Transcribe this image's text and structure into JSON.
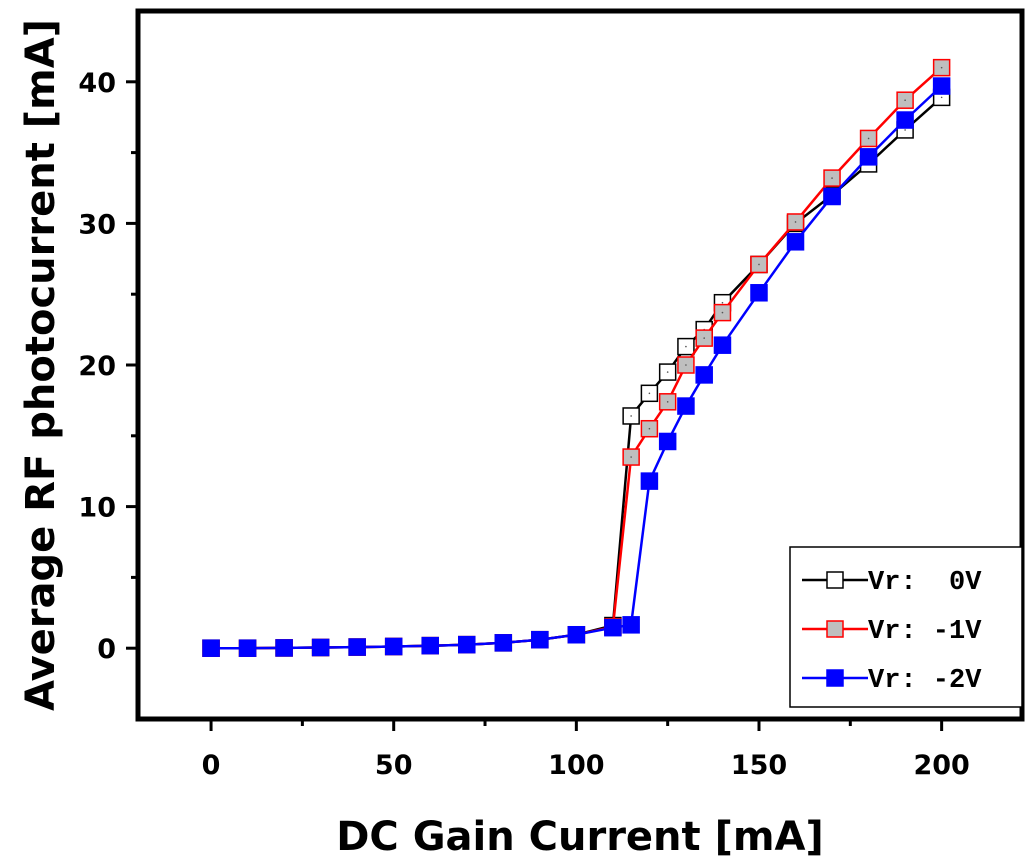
{
  "chart_data": {
    "type": "line",
    "xlabel": "DC Gain Current [mA]",
    "ylabel": "Average RF photocurrent [mA]",
    "xlim": [
      -20,
      222
    ],
    "ylim": [
      -5,
      45
    ],
    "xticks": [
      0,
      50,
      100,
      150,
      200
    ],
    "yticks": [
      0,
      10,
      20,
      30,
      40
    ],
    "grid": false,
    "legend_position": "bottom-right",
    "series": [
      {
        "name": "Vr:  0V",
        "color": "#000000",
        "marker_fill": "#ffffff",
        "x": [
          0,
          10,
          20,
          30,
          40,
          50,
          60,
          70,
          80,
          90,
          100,
          110,
          115,
          120,
          125,
          130,
          135,
          140,
          150,
          160,
          170,
          180,
          190,
          200
        ],
        "y": [
          0,
          0,
          0.02,
          0.05,
          0.08,
          0.12,
          0.18,
          0.25,
          0.38,
          0.6,
          0.95,
          1.6,
          16.4,
          18.0,
          19.5,
          21.3,
          22.5,
          24.4,
          27.1,
          30.0,
          32.0,
          34.2,
          36.6,
          38.9
        ]
      },
      {
        "name": "Vr: -1V",
        "color": "#ff0000",
        "marker_fill": "#bfbfbf",
        "x": [
          0,
          10,
          20,
          30,
          40,
          50,
          60,
          70,
          80,
          90,
          100,
          110,
          115,
          120,
          125,
          130,
          135,
          140,
          150,
          160,
          170,
          180,
          190,
          200
        ],
        "y": [
          0,
          0,
          0.02,
          0.05,
          0.08,
          0.12,
          0.18,
          0.25,
          0.38,
          0.6,
          0.95,
          1.5,
          13.5,
          15.5,
          17.4,
          20.0,
          21.9,
          23.7,
          27.1,
          30.1,
          33.2,
          36.0,
          38.7,
          41.0
        ]
      },
      {
        "name": "Vr: -2V",
        "color": "#0000ff",
        "marker_fill": "#0000ff",
        "x": [
          0,
          10,
          20,
          30,
          40,
          50,
          60,
          70,
          80,
          90,
          100,
          110,
          115,
          120,
          125,
          130,
          135,
          140,
          150,
          160,
          170,
          180,
          190,
          200
        ],
        "y": [
          0,
          0,
          0.02,
          0.05,
          0.08,
          0.12,
          0.18,
          0.25,
          0.38,
          0.6,
          0.95,
          1.45,
          1.65,
          11.8,
          14.6,
          17.1,
          19.3,
          21.4,
          25.1,
          28.7,
          31.9,
          34.7,
          37.3,
          39.7
        ]
      }
    ]
  }
}
